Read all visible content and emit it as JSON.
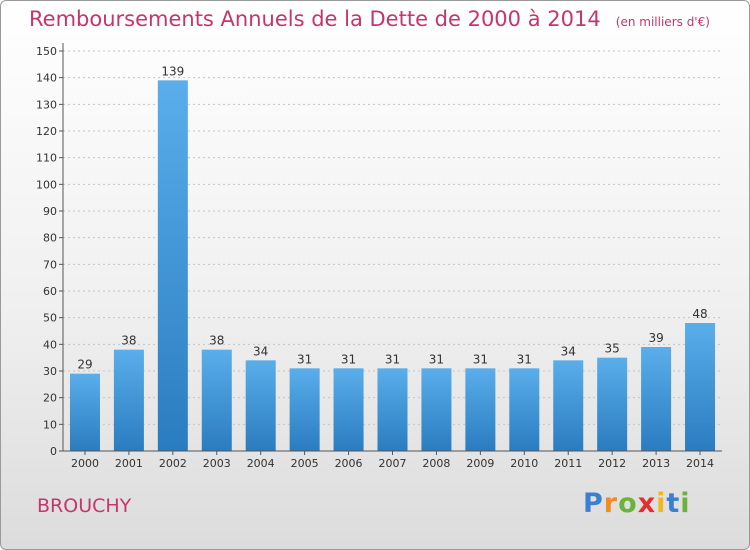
{
  "chart_data": {
    "type": "bar",
    "title": "Remboursements Annuels de la Dette de 2000 à 2014",
    "subtitle": "(en milliers d'€)",
    "categories": [
      "2000",
      "2001",
      "2002",
      "2003",
      "2004",
      "2005",
      "2006",
      "2007",
      "2008",
      "2009",
      "2010",
      "2011",
      "2012",
      "2013",
      "2014"
    ],
    "values": [
      29,
      38,
      139,
      38,
      34,
      31,
      31,
      31,
      31,
      31,
      31,
      34,
      35,
      39,
      48
    ],
    "ylim": [
      0,
      150
    ],
    "yticks": [
      0,
      10,
      20,
      30,
      40,
      50,
      60,
      70,
      80,
      90,
      100,
      110,
      120,
      130,
      140,
      150
    ],
    "grid": "horizontal-dashed",
    "bar_color": "#3a93d6"
  },
  "commune": "BROUCHY",
  "logo": {
    "letters": [
      "P",
      "r",
      "o",
      "x",
      "i",
      "t",
      "i"
    ],
    "colors": [
      "#3a7fd0",
      "#f28c1e",
      "#6bb33a",
      "#e0302f",
      "#f2b71e",
      "#3a7fd0",
      "#6bb33a"
    ]
  }
}
